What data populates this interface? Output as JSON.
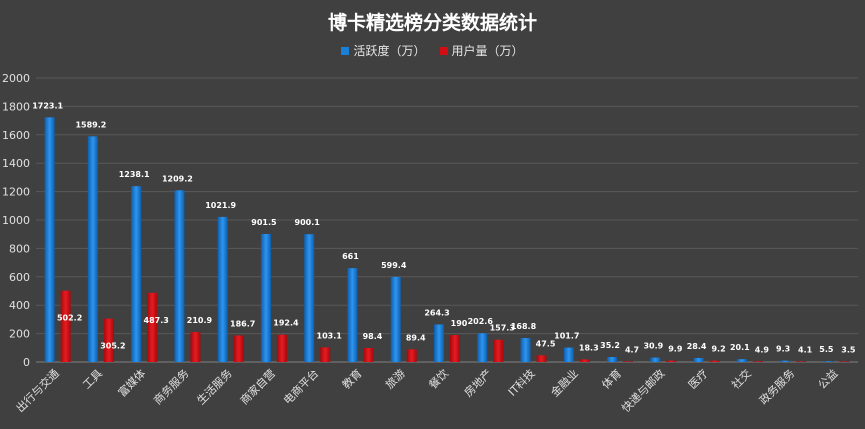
{
  "chart_data": {
    "type": "bar",
    "title": "博卡精选榜分类数据统计",
    "xlabel": "",
    "ylabel": "",
    "ylim": [
      0,
      2000
    ],
    "yticks": [
      0,
      200,
      400,
      600,
      800,
      1000,
      1200,
      1400,
      1600,
      1800,
      2000
    ],
    "grid": true,
    "legend_position": "top",
    "categories": [
      "出行与交通",
      "工具",
      "富媒体",
      "商务服务",
      "生活服务",
      "商家自营",
      "电商平台",
      "教育",
      "旅游",
      "餐饮",
      "房地产",
      "IT科技",
      "金融业",
      "体育",
      "快递与邮政",
      "医疗",
      "社交",
      "政务服务",
      "公益"
    ],
    "series": [
      {
        "name": "活跃度（万）",
        "color": "#1a7fd6",
        "values": [
          1723.1,
          1589.2,
          1238.1,
          1209.2,
          1021.9,
          901.5,
          900.1,
          661,
          599.4,
          264.3,
          202.6,
          168.8,
          101.7,
          35.2,
          30.9,
          28.4,
          20.1,
          9.3,
          5.5
        ]
      },
      {
        "name": "用户量（万）",
        "color": "#d40d12",
        "values": [
          502.2,
          305.2,
          487.3,
          210.9,
          186.7,
          192.4,
          103.1,
          98.4,
          89.4,
          190,
          157.3,
          47.5,
          18.3,
          4.7,
          9.9,
          9.2,
          4.9,
          4.1,
          3.5
        ]
      }
    ]
  }
}
